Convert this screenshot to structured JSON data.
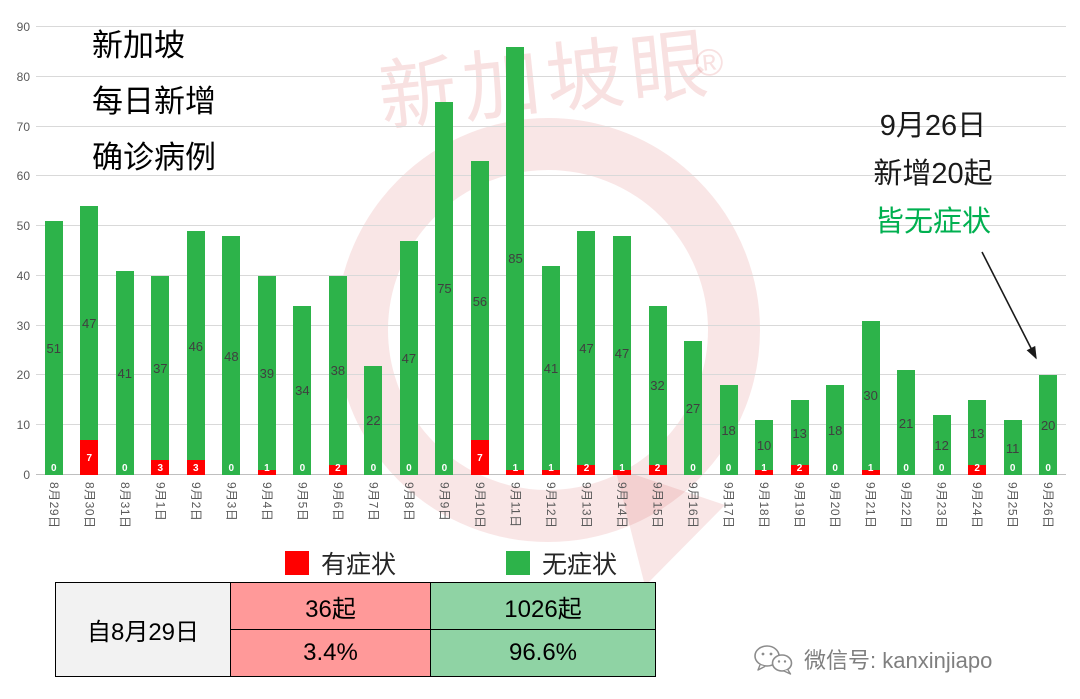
{
  "title": "新加坡\n每日新增\n确诊病例",
  "watermark": {
    "text": "新加坡眼",
    "registered": "®",
    "color": "rgba(214,77,77,0.15)"
  },
  "annotation": {
    "line1": "9月26日",
    "line2": "新增20起",
    "line3": "皆无症状",
    "highlight_color": "#00b050"
  },
  "chart_data": {
    "type": "bar",
    "stacked": true,
    "title": "新加坡每日新增确诊病例",
    "categories": [
      "8月29日",
      "8月30日",
      "8月31日",
      "9月1日",
      "9月2日",
      "9月3日",
      "9月4日",
      "9月5日",
      "9月6日",
      "9月7日",
      "9月8日",
      "9月9日",
      "9月10日",
      "9月11日",
      "9月12日",
      "9月13日",
      "9月14日",
      "9月15日",
      "9月16日",
      "9月17日",
      "9月18日",
      "9月19日",
      "9月20日",
      "9月21日",
      "9月22日",
      "9月23日",
      "9月24日",
      "9月25日",
      "9月26日"
    ],
    "series": [
      {
        "name": "有症状",
        "color": "#ff0000",
        "values": [
          0,
          7,
          0,
          3,
          3,
          0,
          1,
          0,
          2,
          0,
          0,
          0,
          7,
          1,
          1,
          2,
          1,
          2,
          0,
          0,
          1,
          2,
          0,
          1,
          0,
          0,
          2,
          0,
          0
        ]
      },
      {
        "name": "无症状",
        "color": "#2db34a",
        "values": [
          51,
          47,
          41,
          37,
          46,
          48,
          39,
          34,
          38,
          22,
          47,
          75,
          56,
          85,
          41,
          47,
          47,
          32,
          27,
          18,
          10,
          13,
          18,
          30,
          21,
          12,
          13,
          11,
          20
        ]
      }
    ],
    "totals": [
      51,
      54,
      41,
      40,
      49,
      48,
      40,
      34,
      40,
      22,
      47,
      75,
      63,
      86,
      42,
      49,
      48,
      34,
      27,
      18,
      11,
      15,
      18,
      31,
      21,
      12,
      15,
      11,
      20
    ],
    "ylim": [
      0,
      90
    ],
    "ytick_step": 10,
    "grid": true,
    "legend_position": "bottom"
  },
  "summary_table": {
    "row_label": "自8月29日",
    "columns": [
      {
        "name": "有症状",
        "color": "#ff9999",
        "count": "36起",
        "percent": "3.4%"
      },
      {
        "name": "无症状",
        "color": "#8fd3a4",
        "count": "1026起",
        "percent": "96.6%"
      }
    ]
  },
  "footer": {
    "wechat_label": "微信号: kanxinjiapo"
  }
}
